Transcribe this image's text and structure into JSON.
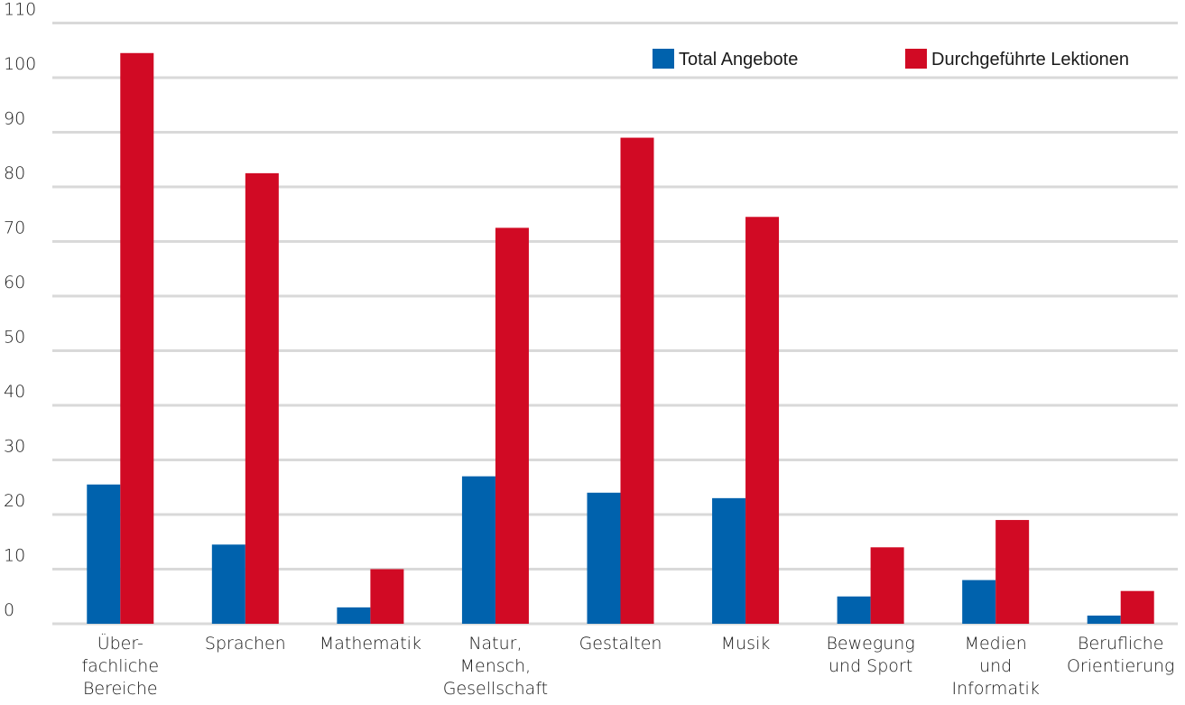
{
  "chart_data": {
    "type": "bar",
    "title": "",
    "xlabel": "",
    "ylabel": "",
    "ylim": [
      0,
      110
    ],
    "yticks": [
      0,
      10,
      20,
      30,
      40,
      50,
      60,
      70,
      80,
      90,
      100,
      110
    ],
    "grid": "horizontal",
    "legend_position": "top-right",
    "categories": [
      [
        "Über-",
        "fachliche",
        "Bereiche"
      ],
      [
        "Sprachen"
      ],
      [
        "Mathematik"
      ],
      [
        "Natur,",
        "Mensch,",
        "Gesellschaft"
      ],
      [
        "Gestalten"
      ],
      [
        "Musik"
      ],
      [
        "Bewegung",
        "und Sport"
      ],
      [
        "Medien",
        "und",
        "Informatik"
      ],
      [
        "Berufliche",
        "Orientierung"
      ]
    ],
    "series": [
      {
        "name": "Total Angebote",
        "color": "#0062ad",
        "values": [
          25.5,
          14.5,
          3,
          27,
          24,
          23,
          5,
          8,
          1.5
        ]
      },
      {
        "name": "Durchgeführte Lektionen",
        "color": "#d10a24",
        "values": [
          104.5,
          82.5,
          10,
          72.5,
          89,
          74.5,
          14,
          19,
          6
        ]
      }
    ]
  }
}
